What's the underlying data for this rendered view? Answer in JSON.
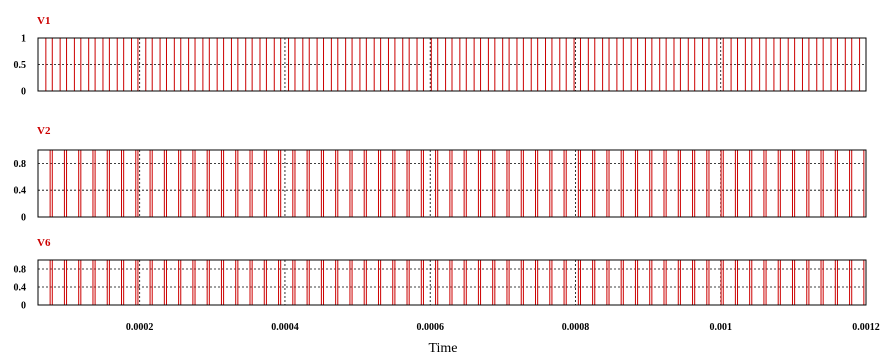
{
  "chart_data": [
    {
      "type": "line",
      "title": "V1",
      "xlim": [
        6e-05,
        0.0012
      ],
      "ylim": [
        0,
        1
      ],
      "yticks": [
        0,
        0.5,
        1
      ],
      "ytick_labels": [
        "0",
        "0.5",
        "1"
      ],
      "series": [
        {
          "name": "V1",
          "waveform": "square",
          "cycles": 58,
          "duty": 0.55,
          "low": 0,
          "high": 1
        }
      ]
    },
    {
      "type": "line",
      "title": "V2",
      "xlim": [
        6e-05,
        0.0012
      ],
      "ylim": [
        0,
        1
      ],
      "yticks": [
        0,
        0.4,
        0.8
      ],
      "ytick_labels": [
        "0",
        "0.4",
        "0.8"
      ],
      "series": [
        {
          "name": "V2",
          "waveform": "square",
          "cycles": 58,
          "duty": 0.85,
          "low": 0,
          "high": 1
        }
      ]
    },
    {
      "type": "line",
      "title": "V6",
      "xlim": [
        6e-05,
        0.0012
      ],
      "ylim": [
        0,
        1
      ],
      "yticks": [
        0,
        0.4,
        0.8
      ],
      "ytick_labels": [
        "0",
        "0.4",
        "0.8"
      ],
      "series": [
        {
          "name": "V6",
          "waveform": "square",
          "cycles": 58,
          "duty": 0.85,
          "low": 0,
          "high": 1
        }
      ]
    }
  ],
  "x_axis": {
    "label": "Time",
    "ticks": [
      0.0002,
      0.0004,
      0.0006,
      0.0008,
      0.001,
      0.0012
    ],
    "tick_labels": [
      "0.0002",
      "0.0004",
      "0.0006",
      "0.0008",
      "0.001",
      "0.0012"
    ]
  },
  "colors": {
    "trace": "#cc0000",
    "title": "#cc0000",
    "frame": "#000000",
    "grid": "#000000"
  }
}
